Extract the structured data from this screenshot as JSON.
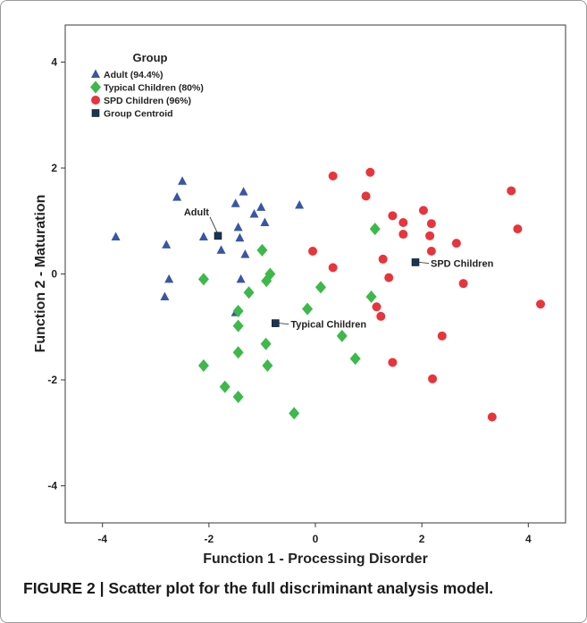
{
  "caption": {
    "label": "FIGURE 2 | ",
    "text": "Scatter plot for the full discriminant analysis model."
  },
  "chart_data": {
    "type": "scatter",
    "title": "",
    "xlabel": "Function 1 - Processing Disorder",
    "ylabel": "Function 2 - Maturation",
    "xlim": [
      -4.7,
      4.7
    ],
    "ylim": [
      -4.7,
      4.7
    ],
    "xticks": [
      -4,
      -2,
      0,
      2,
      4
    ],
    "yticks": [
      -4,
      -2,
      0,
      2,
      4
    ],
    "grid": false,
    "legend": {
      "title": "Group",
      "placement": "top-left",
      "entries": [
        {
          "label": "Adult  (94.4%)",
          "marker": "triangle",
          "color": "#3a55a5"
        },
        {
          "label": "Typical Children  (80%)",
          "marker": "diamond",
          "color": "#3cb94a"
        },
        {
          "label": "SPD Children  (96%)",
          "marker": "circle",
          "color": "#e8343c"
        },
        {
          "label": "Group Centroid",
          "marker": "square",
          "color": "#1a3550"
        }
      ]
    },
    "series": [
      {
        "name": "Adult  (94.4%)",
        "marker": "triangle",
        "color": "#3a55a5",
        "points": [
          [
            -3.75,
            0.7
          ],
          [
            -2.8,
            0.55
          ],
          [
            -2.75,
            -0.1
          ],
          [
            -2.83,
            -0.43
          ],
          [
            -2.6,
            1.45
          ],
          [
            -2.5,
            1.75
          ],
          [
            -2.1,
            0.7
          ],
          [
            -1.77,
            0.45
          ],
          [
            -1.5,
            1.33
          ],
          [
            -1.45,
            0.88
          ],
          [
            -1.42,
            0.68
          ],
          [
            -1.35,
            1.55
          ],
          [
            -1.32,
            0.37
          ],
          [
            -1.15,
            1.13
          ],
          [
            -1.02,
            1.26
          ],
          [
            -0.95,
            0.97
          ],
          [
            -0.3,
            1.3
          ],
          [
            -1.4,
            -0.1
          ],
          [
            -1.5,
            -0.73
          ]
        ]
      },
      {
        "name": "Typical Children  (80%)",
        "marker": "diamond",
        "color": "#3cb94a",
        "points": [
          [
            -2.1,
            -0.1
          ],
          [
            -2.1,
            -1.73
          ],
          [
            -1.7,
            -2.13
          ],
          [
            -1.45,
            -0.7
          ],
          [
            -1.45,
            -0.98
          ],
          [
            -1.45,
            -1.48
          ],
          [
            -1.45,
            -2.32
          ],
          [
            -1.25,
            -0.35
          ],
          [
            -1.0,
            0.45
          ],
          [
            -0.92,
            -0.13
          ],
          [
            -0.85,
            0.0
          ],
          [
            -0.93,
            -1.32
          ],
          [
            -0.9,
            -1.73
          ],
          [
            -0.4,
            -2.63
          ],
          [
            -0.15,
            -0.66
          ],
          [
            0.1,
            -0.25
          ],
          [
            0.5,
            -1.17
          ],
          [
            0.75,
            -1.6
          ],
          [
            1.05,
            -0.43
          ],
          [
            1.12,
            0.85
          ]
        ]
      },
      {
        "name": "SPD Children  (96%)",
        "marker": "circle",
        "color": "#e8343c",
        "points": [
          [
            -0.05,
            0.43
          ],
          [
            0.33,
            1.85
          ],
          [
            0.33,
            0.12
          ],
          [
            0.95,
            1.47
          ],
          [
            1.03,
            1.92
          ],
          [
            1.15,
            -0.62
          ],
          [
            1.23,
            -0.8
          ],
          [
            1.27,
            0.28
          ],
          [
            1.38,
            -0.07
          ],
          [
            1.45,
            1.1
          ],
          [
            1.45,
            -1.67
          ],
          [
            1.65,
            0.97
          ],
          [
            1.65,
            0.75
          ],
          [
            2.03,
            1.2
          ],
          [
            2.15,
            0.72
          ],
          [
            2.18,
            0.95
          ],
          [
            2.18,
            0.43
          ],
          [
            2.2,
            -1.98
          ],
          [
            2.38,
            -1.17
          ],
          [
            2.65,
            0.58
          ],
          [
            2.78,
            -0.18
          ],
          [
            3.32,
            -2.7
          ],
          [
            3.68,
            1.57
          ],
          [
            3.8,
            0.85
          ],
          [
            4.23,
            -0.57
          ]
        ]
      },
      {
        "name": "Group Centroid",
        "marker": "square",
        "color": "#1a3550",
        "points": [
          {
            "x": -1.83,
            "y": 0.72,
            "label": "Adult"
          },
          {
            "x": -0.75,
            "y": -0.93,
            "label": "Typical Children"
          },
          {
            "x": 1.88,
            "y": 0.22,
            "label": "SPD Children"
          }
        ]
      }
    ]
  }
}
